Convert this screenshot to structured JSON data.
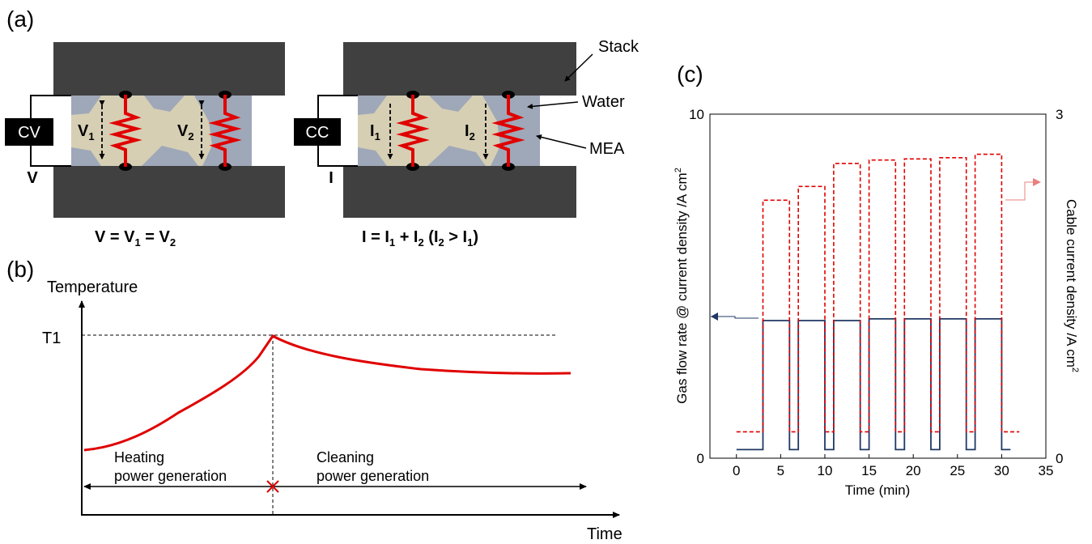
{
  "panel_a": {
    "label": "(a)",
    "cv_box": "CV",
    "cc_box": "CC",
    "v_terminal": "V",
    "i_terminal": "I",
    "v1": {
      "main": "V",
      "sub": "1"
    },
    "v2": {
      "main": "V",
      "sub": "2"
    },
    "i1": {
      "main": "I",
      "sub": "1"
    },
    "i2": {
      "main": "I",
      "sub": "2"
    },
    "eq_left": {
      "p1": "V = V",
      "s1": "1",
      "p2": " = V",
      "s2": "2"
    },
    "eq_right": {
      "p1": "I = I",
      "s1": "1",
      "p2": " + I",
      "s2": "2",
      "p3": " (I",
      "s3": "2",
      "p4": " > I",
      "s4": "1",
      "p5": ")"
    },
    "callouts": {
      "stack": "Stack",
      "water": "Water",
      "mea": "MEA"
    },
    "colors": {
      "stack": "#404040",
      "mea": "#d6cfb4",
      "water": "#9fa8b8",
      "resistor": "#e00000"
    }
  },
  "panel_b": {
    "label": "(b)",
    "y_axis": "Temperature",
    "x_axis": "Time",
    "t1": "T1",
    "heating_l1": "Heating",
    "heating_l2": "power generation",
    "cleaning_l1": "Cleaning",
    "cleaning_l2": "power generation",
    "curve_color": "#e00000"
  },
  "panel_c": {
    "label": "(c)",
    "chart_data": {
      "type": "line",
      "xlabel": "Time (min)",
      "ylabel_left": "Gas flow rate @ current density /A cm",
      "ylabel_left_sup": "2",
      "ylabel_right": "Cable current density /A cm",
      "ylabel_right_sup": "2",
      "xlim": [
        -3,
        35
      ],
      "ylim_left": [
        0,
        10
      ],
      "ylim_right": [
        0,
        3
      ],
      "x_ticks": [
        "0",
        "5",
        "10",
        "15",
        "20",
        "25",
        "30",
        "35"
      ],
      "y_left_ticks": [
        "0",
        "10"
      ],
      "y_right_ticks": [
        "0",
        "3"
      ],
      "series": [
        {
          "axis": "left",
          "color": "#1f3864",
          "style": "solid",
          "x": [
            0,
            3,
            3,
            6,
            6,
            7,
            7,
            10,
            10,
            11,
            11,
            14,
            14,
            15,
            15,
            18,
            18,
            19,
            19,
            22,
            22,
            23,
            23,
            26,
            26,
            27,
            27,
            30,
            30,
            31
          ],
          "y": [
            0.25,
            0.25,
            4.0,
            4.0,
            0.25,
            0.25,
            4.0,
            4.0,
            0.25,
            0.25,
            4.0,
            4.0,
            0.25,
            0.25,
            4.05,
            4.05,
            0.25,
            0.25,
            4.05,
            4.05,
            0.25,
            0.25,
            4.05,
            4.05,
            0.25,
            0.25,
            4.05,
            4.05,
            0.25,
            0.25
          ]
        },
        {
          "axis": "right",
          "color": "#e00000",
          "style": "dashed",
          "x": [
            0,
            3,
            3,
            6,
            6,
            7,
            7,
            10,
            10,
            11,
            11,
            14,
            14,
            15,
            15,
            18,
            18,
            19,
            19,
            22,
            22,
            23,
            23,
            26,
            26,
            27,
            27,
            30,
            30,
            32
          ],
          "y": [
            0.23,
            0.23,
            2.25,
            2.25,
            0.23,
            0.23,
            2.37,
            2.37,
            0.23,
            0.23,
            2.57,
            2.57,
            0.23,
            0.23,
            2.6,
            2.6,
            0.23,
            0.23,
            2.61,
            2.61,
            0.23,
            0.23,
            2.62,
            2.62,
            0.23,
            0.23,
            2.65,
            2.65,
            0.23,
            0.23
          ]
        }
      ]
    }
  }
}
